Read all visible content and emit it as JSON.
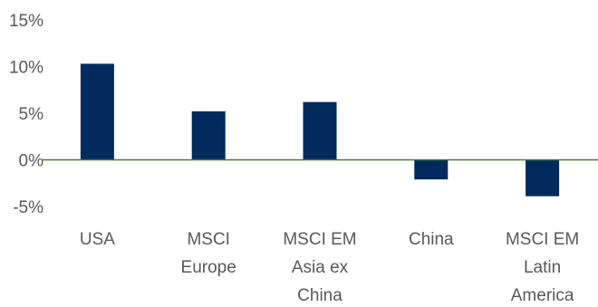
{
  "chart_data": {
    "type": "bar",
    "title": "",
    "xlabel": "",
    "ylabel": "",
    "ylim": [
      -5,
      15
    ],
    "yticks": [
      "15%",
      "10%",
      "5%",
      "0%",
      "-5%"
    ],
    "ytick_values": [
      15,
      10,
      5,
      0,
      -5
    ],
    "grid": false,
    "legend": "none",
    "categories": [
      [
        "USA"
      ],
      [
        "MSCI",
        "Europe"
      ],
      [
        "MSCI EM",
        "Asia ex",
        "China"
      ],
      [
        "China"
      ],
      [
        "MSCI EM",
        "Latin",
        "America"
      ]
    ],
    "values": [
      10.3,
      5.2,
      6.2,
      -2.1,
      -3.9
    ],
    "bar_color": "#002B5C",
    "axis_color": "#4E7A3A"
  }
}
